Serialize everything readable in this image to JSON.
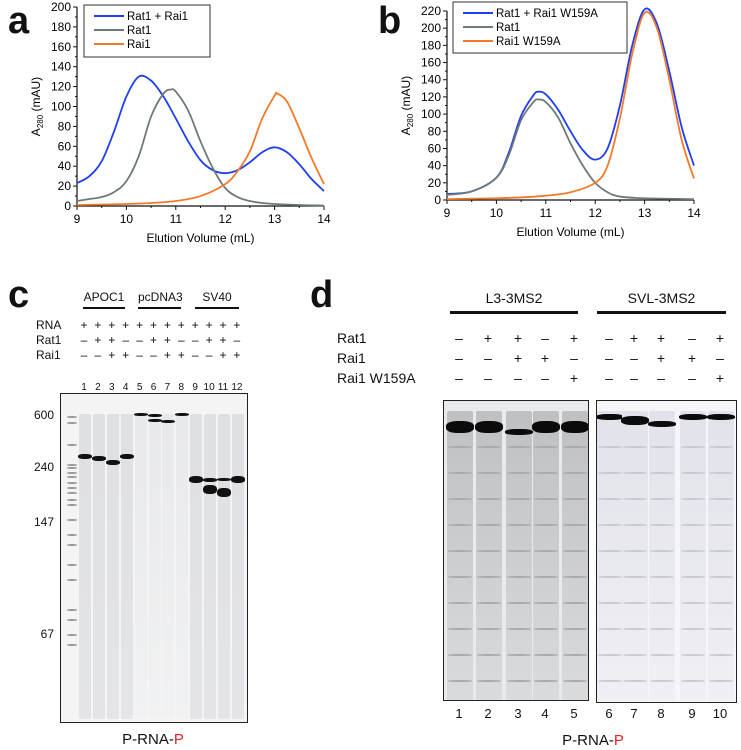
{
  "panels": {
    "a": "a",
    "b": "b",
    "c": "c",
    "d": "d"
  },
  "chart_data": [
    {
      "type": "line",
      "id": "a",
      "xlabel": "Elution Volume (mL)",
      "ylabel": "A280 (mAU)",
      "ylabel_main": "A",
      "ylabel_sub": "280",
      "ylabel_unit": " (mAU)",
      "xlim": [
        9,
        14
      ],
      "ylim": [
        0,
        200
      ],
      "xticks": [
        9,
        10,
        11,
        12,
        13,
        14
      ],
      "yticks": [
        0,
        20,
        40,
        60,
        80,
        100,
        120,
        140,
        160,
        180,
        200
      ],
      "legend_position": "top-left",
      "series": [
        {
          "name": "Rat1 + Rai1",
          "color": "#1f3ff0",
          "x": [
            9,
            9.25,
            9.5,
            9.75,
            10,
            10.25,
            10.5,
            10.75,
            11,
            11.25,
            11.5,
            11.75,
            12,
            12.25,
            12.5,
            12.75,
            13,
            13.25,
            13.5,
            13.75,
            14
          ],
          "y": [
            23,
            30,
            45,
            75,
            110,
            130,
            126,
            110,
            88,
            65,
            46,
            36,
            33,
            36,
            44,
            54,
            59,
            54,
            42,
            27,
            15
          ]
        },
        {
          "name": "Rat1",
          "color": "#6f7a78",
          "x": [
            9,
            9.25,
            9.5,
            9.75,
            10,
            10.25,
            10.5,
            10.75,
            10.9,
            11,
            11.25,
            11.5,
            11.75,
            12,
            12.25,
            12.5,
            12.75,
            13,
            13.5,
            14
          ],
          "y": [
            5,
            7,
            9,
            14,
            25,
            50,
            90,
            113,
            117,
            115,
            96,
            65,
            38,
            18,
            9,
            5,
            3,
            2,
            1,
            0.5
          ]
        },
        {
          "name": "Rai1",
          "color": "#f47a2a",
          "x": [
            9,
            10,
            10.5,
            11,
            11.5,
            12,
            12.25,
            12.5,
            12.75,
            13,
            13.05,
            13.25,
            13.5,
            13.75,
            14
          ],
          "y": [
            1,
            2,
            3,
            5,
            10,
            22,
            35,
            55,
            88,
            111,
            113,
            105,
            78,
            48,
            22
          ]
        }
      ]
    },
    {
      "type": "line",
      "id": "b",
      "xlabel": "Elution Volume (mL)",
      "ylabel": "A280 (mAU)",
      "ylabel_main": "A",
      "ylabel_sub": "280",
      "ylabel_unit": " (mAU)",
      "xlim": [
        9,
        14
      ],
      "ylim": [
        0,
        220
      ],
      "xticks": [
        9,
        10,
        11,
        12,
        13,
        14
      ],
      "yticks": [
        0,
        20,
        40,
        60,
        80,
        100,
        120,
        140,
        160,
        180,
        200,
        220
      ],
      "legend_position": "top-left",
      "series": [
        {
          "name": "Rat1 + Rai1 W159A",
          "color": "#1f3ff0",
          "x": [
            9,
            9.5,
            10,
            10.25,
            10.5,
            10.75,
            10.85,
            11,
            11.25,
            11.5,
            11.75,
            12,
            12.25,
            12.5,
            12.75,
            13,
            13.25,
            13.5,
            13.75,
            14
          ],
          "y": [
            7,
            10,
            26,
            55,
            98,
            122,
            126,
            123,
            105,
            80,
            58,
            47,
            60,
            110,
            180,
            222,
            205,
            150,
            85,
            40
          ]
        },
        {
          "name": "Rat1",
          "color": "#6f7a78",
          "x": [
            9,
            9.5,
            10,
            10.25,
            10.5,
            10.75,
            10.85,
            11,
            11.25,
            11.5,
            11.75,
            12,
            12.25,
            12.5,
            13,
            14
          ],
          "y": [
            6,
            10,
            26,
            52,
            93,
            114,
            117,
            114,
            96,
            66,
            40,
            20,
            9,
            4,
            2,
            1
          ]
        },
        {
          "name": "Rai1 W159A",
          "color": "#f47a2a",
          "x": [
            9,
            10,
            10.5,
            11,
            11.5,
            12,
            12.25,
            12.5,
            12.75,
            13,
            13.25,
            13.5,
            13.75,
            14
          ],
          "y": [
            1,
            2,
            3,
            5,
            9,
            20,
            40,
            95,
            170,
            218,
            200,
            140,
            70,
            25
          ]
        }
      ]
    }
  ],
  "gel_c": {
    "groups": [
      "APOC1",
      "pcDNA3",
      "SV40"
    ],
    "rows": [
      {
        "label": "RNA",
        "values": [
          "+",
          "+",
          "+",
          "+",
          "+",
          "+",
          "+",
          "+",
          "+",
          "+",
          "+",
          "+"
        ]
      },
      {
        "label": "Rat1",
        "values": [
          "–",
          "+",
          "+",
          "–",
          "–",
          "+",
          "+",
          "–",
          "–",
          "+",
          "+",
          "–"
        ]
      },
      {
        "label": "Rai1",
        "values": [
          "–",
          "–",
          "+",
          "+",
          "–",
          "–",
          "+",
          "+",
          "–",
          "–",
          "+",
          "+"
        ]
      }
    ],
    "lanes": [
      "1",
      "2",
      "3",
      "4",
      "5",
      "6",
      "7",
      "8",
      "9",
      "10",
      "11",
      "12"
    ],
    "markers": [
      "600",
      "240",
      "147",
      "67"
    ],
    "caption_prefix": "P-RNA-",
    "caption_suffix": "P"
  },
  "gel_d": {
    "groups": [
      "L3-3MS2",
      "SVL-3MS2"
    ],
    "rows": [
      {
        "label": "Rat1",
        "values": [
          "–",
          "+",
          "+",
          "–",
          "+",
          "–",
          "+",
          "+",
          "–",
          "+"
        ]
      },
      {
        "label": "Rai1",
        "values": [
          "–",
          "–",
          "+",
          "+",
          "–",
          "–",
          "–",
          "+",
          "+",
          "–"
        ]
      },
      {
        "label": "Rai1 W159A",
        "values": [
          "–",
          "–",
          "–",
          "–",
          "+",
          "–",
          "–",
          "–",
          "–",
          "+"
        ]
      }
    ],
    "lanes": [
      "1",
      "2",
      "3",
      "4",
      "5",
      "6",
      "7",
      "8",
      "9",
      "10"
    ],
    "caption_prefix": "P-RNA-",
    "caption_suffix": "P"
  }
}
